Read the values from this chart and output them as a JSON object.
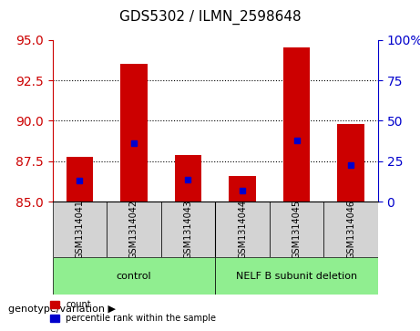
{
  "title": "GDS5302 / ILMN_2598648",
  "samples": [
    "GSM1314041",
    "GSM1314042",
    "GSM1314043",
    "GSM1314044",
    "GSM1314045",
    "GSM1314046"
  ],
  "groups": [
    "control",
    "control",
    "control",
    "NELF B subunit deletion",
    "NELF B subunit deletion",
    "NELF B subunit deletion"
  ],
  "bar_tops": [
    87.8,
    93.5,
    87.9,
    86.6,
    94.5,
    89.8
  ],
  "bar_bottoms": [
    85.0,
    85.0,
    85.0,
    85.0,
    85.0,
    85.0
  ],
  "percentile_values": [
    86.3,
    88.6,
    86.4,
    85.7,
    88.8,
    87.3
  ],
  "ylim_left": [
    85,
    95
  ],
  "yticks_left": [
    85,
    87.5,
    90,
    92.5,
    95
  ],
  "ylim_right": [
    0,
    100
  ],
  "yticks_right": [
    0,
    25,
    50,
    75,
    100
  ],
  "bar_color": "#cc0000",
  "percentile_color": "#0000cc",
  "grid_color": "#000000",
  "left_tick_color": "#cc0000",
  "right_tick_color": "#0000cc",
  "group_colors": {
    "control": "#90ee90",
    "NELF B subunit deletion": "#90ee90"
  },
  "group_label": "genotype/variation",
  "legend_count_label": "count",
  "legend_percentile_label": "percentile rank within the sample",
  "bar_width": 0.5,
  "sample_bg_color": "#d3d3d3"
}
